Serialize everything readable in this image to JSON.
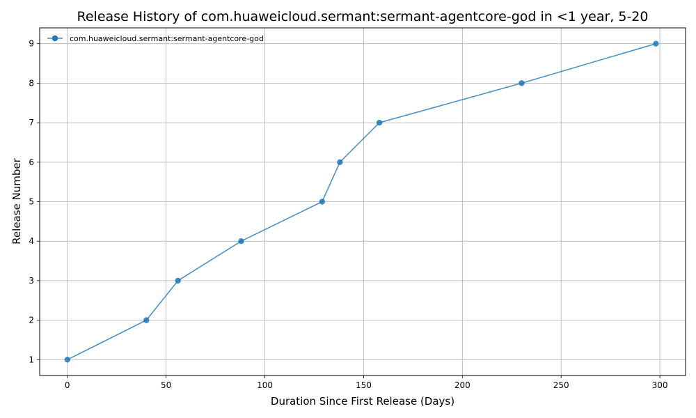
{
  "chart_data": {
    "type": "line",
    "title": "Release History of com.huaweicloud.sermant:sermant-agentcore-god in <1 year, 5-20",
    "xlabel": "Duration Since First Release (Days)",
    "ylabel": "Release Number",
    "xlim": [
      -14,
      313
    ],
    "ylim": [
      0.6,
      9.4
    ],
    "xticks": [
      0,
      50,
      100,
      150,
      200,
      250,
      300
    ],
    "yticks": [
      1,
      2,
      3,
      4,
      5,
      6,
      7,
      8,
      9
    ],
    "grid": true,
    "legend_position": "top-left",
    "series": [
      {
        "name": "com.huaweicloud.sermant:sermant-agentcore-god",
        "color": "#1f77b4",
        "x": [
          0,
          40,
          56,
          88,
          129,
          138,
          158,
          230,
          298
        ],
        "y": [
          1,
          2,
          3,
          4,
          5,
          6,
          7,
          8,
          9
        ]
      }
    ]
  }
}
